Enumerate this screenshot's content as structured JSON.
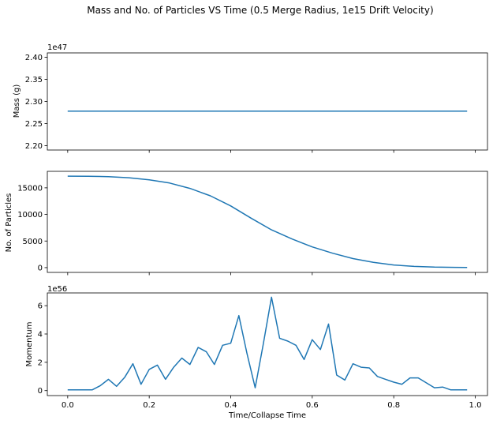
{
  "title": "Mass and No. of Particles VS Time (0.5 Merge Radius, 1e15 Drift Velocity)",
  "xlabel": "Time/Collapse Time",
  "x_ticks": [
    "0.0",
    "0.2",
    "0.4",
    "0.6",
    "0.8",
    "1.0"
  ],
  "colors": {
    "series": "#1f77b4"
  },
  "chart_data": [
    {
      "type": "line",
      "ylabel": "Mass (g)",
      "offset_label": "1e47",
      "xlim": [
        -0.05,
        1.03
      ],
      "ylim": [
        2.19,
        2.41
      ],
      "y_ticks": [
        2.2,
        2.25,
        2.3,
        2.35,
        2.4
      ],
      "y_tick_labels": [
        "2.20",
        "2.25",
        "2.30",
        "2.35",
        "2.40"
      ],
      "x": [
        0.0,
        0.98
      ],
      "y": [
        2.278,
        2.278
      ]
    },
    {
      "type": "line",
      "ylabel": "No. of Particles",
      "offset_label": "",
      "xlim": [
        -0.05,
        1.03
      ],
      "ylim": [
        -900,
        18100
      ],
      "y_ticks": [
        0,
        5000,
        10000,
        15000
      ],
      "y_tick_labels": [
        "0",
        "5000",
        "10000",
        "15000"
      ],
      "x": [
        0.0,
        0.05,
        0.1,
        0.15,
        0.2,
        0.25,
        0.3,
        0.35,
        0.4,
        0.45,
        0.5,
        0.55,
        0.6,
        0.65,
        0.7,
        0.75,
        0.8,
        0.85,
        0.9,
        0.95,
        0.98
      ],
      "y": [
        17200,
        17180,
        17100,
        16900,
        16500,
        15900,
        14900,
        13500,
        11600,
        9300,
        7100,
        5400,
        3900,
        2700,
        1700,
        1000,
        500,
        230,
        100,
        50,
        40
      ]
    },
    {
      "type": "line",
      "ylabel": "Momentum",
      "offset_label": "1e56",
      "xlim": [
        -0.05,
        1.03
      ],
      "ylim": [
        -0.35,
        6.9
      ],
      "y_ticks": [
        0,
        2,
        4,
        6
      ],
      "y_tick_labels": [
        "0",
        "2",
        "4",
        "6"
      ],
      "x": [
        0.0,
        0.02,
        0.04,
        0.06,
        0.08,
        0.1,
        0.12,
        0.14,
        0.16,
        0.18,
        0.2,
        0.22,
        0.24,
        0.26,
        0.28,
        0.3,
        0.32,
        0.34,
        0.36,
        0.38,
        0.4,
        0.42,
        0.44,
        0.46,
        0.48,
        0.5,
        0.52,
        0.54,
        0.56,
        0.58,
        0.6,
        0.62,
        0.64,
        0.66,
        0.68,
        0.7,
        0.72,
        0.74,
        0.76,
        0.78,
        0.8,
        0.82,
        0.84,
        0.86,
        0.88,
        0.9,
        0.92,
        0.94,
        0.96,
        0.98
      ],
      "y": [
        0.05,
        0.05,
        0.05,
        0.05,
        0.35,
        0.8,
        0.3,
        0.95,
        1.9,
        0.45,
        1.5,
        1.8,
        0.8,
        1.65,
        2.3,
        1.85,
        3.05,
        2.75,
        1.85,
        3.2,
        3.35,
        5.3,
        2.6,
        0.2,
        3.3,
        6.6,
        3.7,
        3.5,
        3.2,
        2.2,
        3.6,
        2.9,
        4.7,
        1.1,
        0.75,
        1.9,
        1.65,
        1.6,
        1.0,
        0.8,
        0.6,
        0.45,
        0.9,
        0.9,
        0.55,
        0.2,
        0.25,
        0.05,
        0.05,
        0.05
      ]
    }
  ]
}
